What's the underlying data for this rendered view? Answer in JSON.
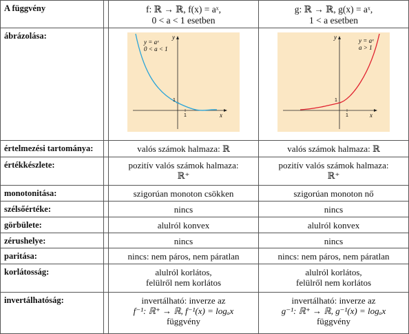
{
  "header": {
    "title": "A függvény",
    "f_def_line1": "f: ℝ → ℝ, f(x) = aˣ,",
    "f_def_line2": "0 < a < 1 esetben",
    "g_def_line1": "g: ℝ → ℝ, g(x) = aˣ,",
    "g_def_line2": "1 < a esetben"
  },
  "rows": {
    "graph": {
      "label": "ábrázolása:"
    },
    "domain": {
      "label": "értelmezési tartománya:",
      "f": "valós számok halmaza: ℝ",
      "g": "valós számok halmaza: ℝ"
    },
    "range": {
      "label": "értékkészlete:",
      "f_line1": "pozitív valós számok halmaza:",
      "f_line2": "ℝ⁺",
      "g_line1": "pozitív valós számok halmaza:",
      "g_line2": "ℝ⁺"
    },
    "monotonic": {
      "label": "monotonitása:",
      "f": "szigorúan monoton csökken",
      "g": "szigorúan monoton nő"
    },
    "extremum": {
      "label": "szélsőértéke:",
      "f": "nincs",
      "g": "nincs"
    },
    "curvature": {
      "label": "görbülete:",
      "f": "alulról konvex",
      "g": "alulról konvex"
    },
    "zero": {
      "label": "zérushelye:",
      "f": "nincs",
      "g": "nincs"
    },
    "parity": {
      "label": "paritása:",
      "f": "nincs: nem páros, nem páratlan",
      "g": "nincs: nem páros, nem páratlan"
    },
    "bounded": {
      "label": "korlátosság:",
      "f_line1": "alulról korlátos,",
      "f_line2": "felülről nem korlátos",
      "g_line1": "alulról korlátos,",
      "g_line2": "felülről nem korlátos"
    },
    "invertible": {
      "label": "invertálhatóság:",
      "f_line1": "invertálható: inverze az",
      "f_line2": "f⁻¹: ℝ⁺ → ℝ, f⁻¹(x) = logₐx",
      "f_line3": "függvény",
      "g_line1": "invertálható: inverze az",
      "g_line2": "g⁻¹: ℝ⁺ → ℝ, g⁻¹(x) = logₐx",
      "g_line3": "függvény"
    }
  },
  "plots": {
    "f": {
      "label_line1": "y = aˣ",
      "label_line2": "0 < a < 1",
      "axis_x": "x",
      "axis_y": "y",
      "tick_x": "1",
      "tick_y": "1",
      "curve_color": "#2aa4d8"
    },
    "g": {
      "label_line1": "y = aˣ",
      "label_line2": "a > 1",
      "axis_x": "x",
      "axis_y": "y",
      "tick_x": "1",
      "tick_y": "1",
      "curve_color": "#e0202e"
    }
  },
  "colors": {
    "plot_background": "#fbe7c4",
    "border": "#555555"
  }
}
